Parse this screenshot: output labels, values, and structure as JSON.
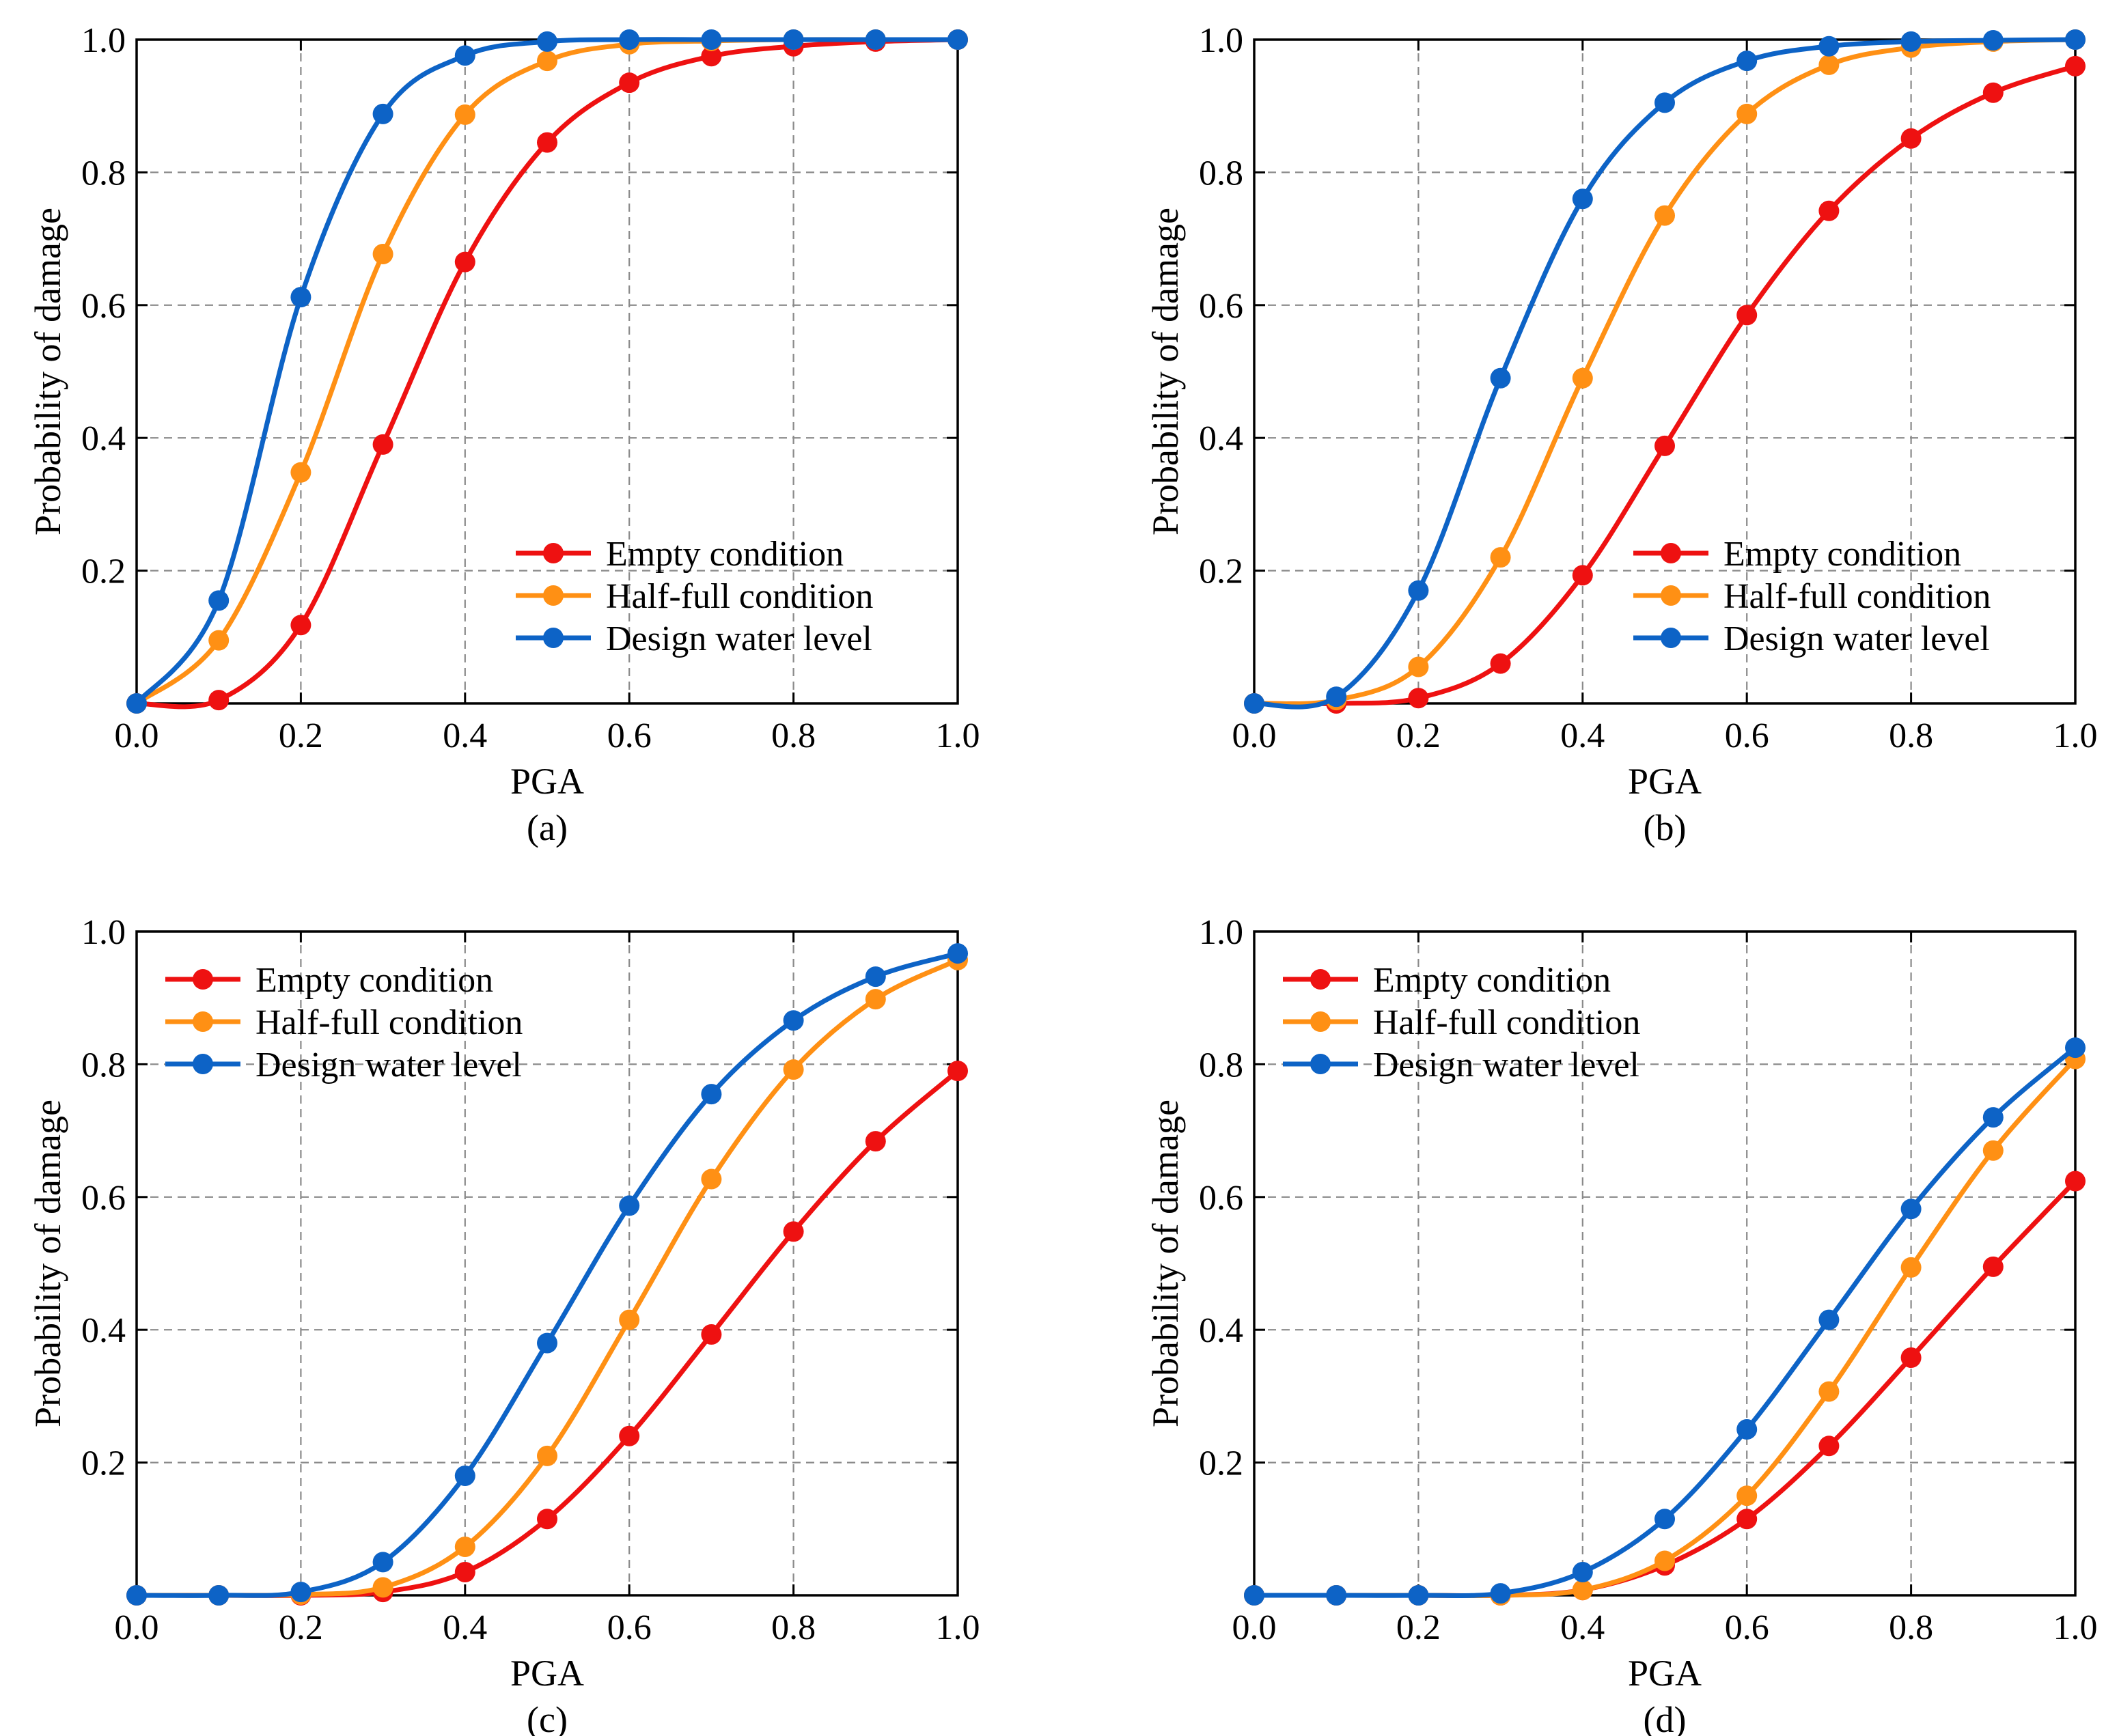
{
  "colors": {
    "empty": "#ee1111",
    "half": "#ff9014",
    "design": "#0d63c6"
  },
  "chart_data": [
    {
      "type": "line",
      "panel": "(a)",
      "xlabel": "PGA",
      "ylabel": "Probability of damage",
      "xlim": [
        0,
        1.0
      ],
      "ylim": [
        0,
        1.0
      ],
      "xticks": [
        "0.0",
        "0.2",
        "0.4",
        "0.6",
        "0.8",
        "1.0"
      ],
      "yticks": [
        "0.2",
        "0.4",
        "0.6",
        "0.8",
        "1.0"
      ],
      "grid": true,
      "legend_position": "bottom-right",
      "x": [
        0.0,
        0.1,
        0.2,
        0.3,
        0.4,
        0.5,
        0.6,
        0.7,
        0.8,
        0.9,
        1.0
      ],
      "series": [
        {
          "name": "Empty condition",
          "color_key": "empty",
          "values": [
            0.0,
            0.005,
            0.118,
            0.39,
            0.665,
            0.845,
            0.935,
            0.975,
            0.99,
            0.997,
            1.0
          ]
        },
        {
          "name": "Half-full condition",
          "color_key": "half",
          "values": [
            0.0,
            0.095,
            0.348,
            0.677,
            0.887,
            0.968,
            0.993,
            0.998,
            1.0,
            1.0,
            1.0
          ]
        },
        {
          "name": "Design water level",
          "color_key": "design",
          "values": [
            0.0,
            0.155,
            0.612,
            0.888,
            0.976,
            0.997,
            1.0,
            1.0,
            1.0,
            1.0,
            1.0
          ]
        }
      ]
    },
    {
      "type": "line",
      "panel": "(b)",
      "xlabel": "PGA",
      "ylabel": "Probability of damage",
      "xlim": [
        0,
        1.0
      ],
      "ylim": [
        0,
        1.0
      ],
      "xticks": [
        "0.0",
        "0.2",
        "0.4",
        "0.6",
        "0.8",
        "1.0"
      ],
      "yticks": [
        "0.2",
        "0.4",
        "0.6",
        "0.8",
        "1.0"
      ],
      "grid": true,
      "legend_position": "bottom-right",
      "x": [
        0.0,
        0.1,
        0.2,
        0.3,
        0.4,
        0.5,
        0.6,
        0.7,
        0.8,
        0.9,
        1.0
      ],
      "series": [
        {
          "name": "Empty condition",
          "color_key": "empty",
          "values": [
            0.0,
            0.0,
            0.008,
            0.06,
            0.193,
            0.388,
            0.585,
            0.742,
            0.851,
            0.92,
            0.96
          ]
        },
        {
          "name": "Half-full condition",
          "color_key": "half",
          "values": [
            0.0,
            0.005,
            0.055,
            0.22,
            0.49,
            0.735,
            0.888,
            0.962,
            0.988,
            0.997,
            1.0
          ]
        },
        {
          "name": "Design water level",
          "color_key": "design",
          "values": [
            0.0,
            0.01,
            0.17,
            0.49,
            0.76,
            0.905,
            0.968,
            0.99,
            0.997,
            0.999,
            1.0
          ]
        }
      ]
    },
    {
      "type": "line",
      "panel": "(c)",
      "xlabel": "PGA",
      "ylabel": "Probability of damage",
      "xlim": [
        0,
        1.0
      ],
      "ylim": [
        0,
        1.0
      ],
      "xticks": [
        "0.0",
        "0.2",
        "0.4",
        "0.6",
        "0.8",
        "1.0"
      ],
      "yticks": [
        "0.2",
        "0.4",
        "0.6",
        "0.8",
        "1.0"
      ],
      "grid": true,
      "legend_position": "top-left",
      "x": [
        0.0,
        0.1,
        0.2,
        0.3,
        0.4,
        0.5,
        0.6,
        0.7,
        0.8,
        0.9,
        1.0
      ],
      "series": [
        {
          "name": "Empty condition",
          "color_key": "empty",
          "values": [
            0.0,
            0.0,
            0.0,
            0.005,
            0.035,
            0.115,
            0.24,
            0.393,
            0.548,
            0.684,
            0.79
          ]
        },
        {
          "name": "Half-full condition",
          "color_key": "half",
          "values": [
            0.0,
            0.0,
            0.001,
            0.012,
            0.073,
            0.21,
            0.415,
            0.627,
            0.792,
            0.898,
            0.957
          ]
        },
        {
          "name": "Design water level",
          "color_key": "design",
          "values": [
            0.0,
            0.0,
            0.005,
            0.05,
            0.18,
            0.38,
            0.587,
            0.755,
            0.866,
            0.932,
            0.967
          ]
        }
      ]
    },
    {
      "type": "line",
      "panel": "(d)",
      "xlabel": "PGA",
      "ylabel": "Probability of damage",
      "xlim": [
        0,
        1.0
      ],
      "ylim": [
        0,
        1.0
      ],
      "xticks": [
        "0.0",
        "0.2",
        "0.4",
        "0.6",
        "0.8",
        "1.0"
      ],
      "yticks": [
        "0.2",
        "0.4",
        "0.6",
        "0.8",
        "1.0"
      ],
      "grid": true,
      "legend_position": "top-left",
      "x": [
        0.0,
        0.1,
        0.2,
        0.3,
        0.4,
        0.5,
        0.6,
        0.7,
        0.8,
        0.9,
        1.0
      ],
      "series": [
        {
          "name": "Empty condition",
          "color_key": "empty",
          "values": [
            0.0,
            0.0,
            0.0,
            0.0,
            0.008,
            0.045,
            0.115,
            0.225,
            0.358,
            0.495,
            0.624
          ]
        },
        {
          "name": "Half-full condition",
          "color_key": "half",
          "values": [
            0.0,
            0.0,
            0.0,
            0.0,
            0.008,
            0.052,
            0.15,
            0.307,
            0.494,
            0.67,
            0.808
          ]
        },
        {
          "name": "Design water level",
          "color_key": "design",
          "values": [
            0.0,
            0.0,
            0.0,
            0.003,
            0.035,
            0.115,
            0.25,
            0.415,
            0.582,
            0.72,
            0.825
          ]
        }
      ]
    }
  ]
}
